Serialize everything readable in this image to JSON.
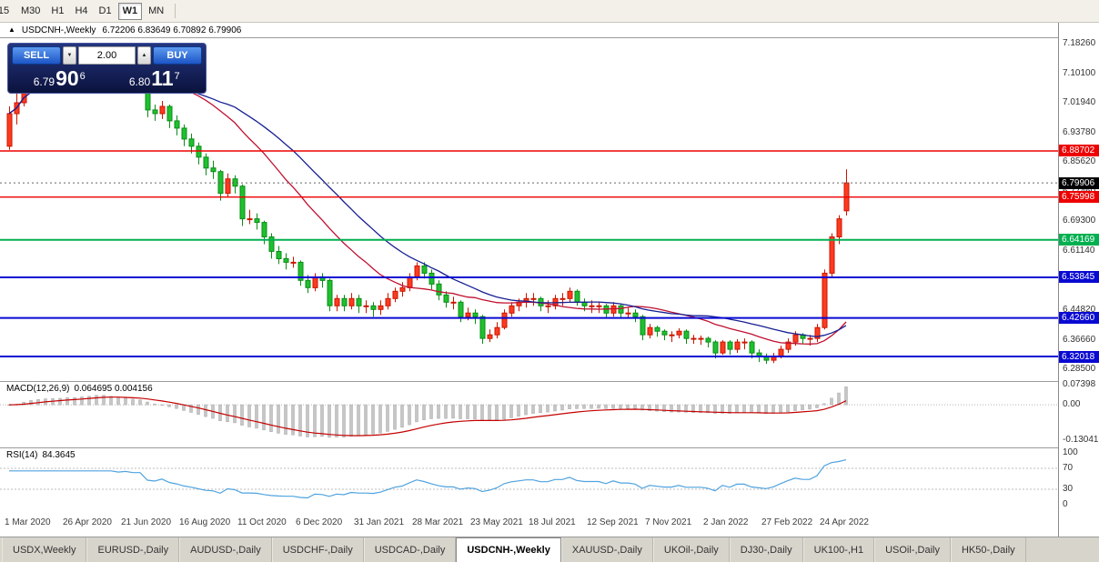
{
  "icons": {
    "chart_icon": "▲",
    "spin_up": "▲",
    "spin_down": "▼"
  },
  "toolbar": {
    "timeframes": [
      "15",
      "M30",
      "H1",
      "H4",
      "D1",
      "W1",
      "MN"
    ],
    "active": "W1"
  },
  "chart_header": {
    "title": "USDCNH-,Weekly",
    "ohlc": "6.72206 6.83649 6.70892 6.79906"
  },
  "trade_panel": {
    "sell_label": "SELL",
    "buy_label": "BUY",
    "lot_value": "2.00",
    "bid": {
      "small": "6.79",
      "big": "90",
      "sup": "6"
    },
    "ask": {
      "small": "6.80",
      "big": "11",
      "sup": "7"
    }
  },
  "price_axis": {
    "ticks": [
      "7.18260",
      "7.10100",
      "7.01940",
      "6.93780",
      "6.85620",
      "6.77460",
      "6.69300",
      "6.61140",
      "6.52980",
      "6.44820",
      "6.36660",
      "6.28500"
    ]
  },
  "hlines": [
    {
      "price": 6.88702,
      "label": "6.88702",
      "color": "#ed0000",
      "width": 1.4
    },
    {
      "price": 6.75998,
      "label": "6.75998",
      "color": "#ed0000",
      "width": 1.4
    },
    {
      "price": 6.64169,
      "label": "6.64169",
      "color": "#00b050",
      "width": 2
    },
    {
      "price": 6.53845,
      "label": "6.53845",
      "color": "#0909d2",
      "width": 2
    },
    {
      "price": 6.4266,
      "label": "6.42660",
      "color": "#0909d2",
      "width": 2
    },
    {
      "price": 6.32018,
      "label": "6.32018",
      "color": "#0909d2",
      "width": 2
    }
  ],
  "current_price": {
    "label": "6.79906",
    "price": 6.79906,
    "bg": "#000000"
  },
  "chart_data": {
    "type": "candlestick",
    "title": "USDCNH-,Weekly",
    "x_unit": "week",
    "weeks_per_label": 8,
    "x_labels": [
      "1 Mar 2020",
      "26 Apr 2020",
      "21 Jun 2020",
      "16 Aug 2020",
      "11 Oct 2020",
      "6 Dec 2020",
      "31 Jan 2021",
      "28 Mar 2021",
      "23 May 2021",
      "18 Jul 2021",
      "12 Sep 2021",
      "7 Nov 2021",
      "2 Jan 2022",
      "27 Feb 2022",
      "24 Apr 2022"
    ],
    "price_range": [
      6.255,
      7.198
    ],
    "up_color": "#fd3b20",
    "up_stroke": "#c81600",
    "down_color": "#1fc02f",
    "down_stroke": "#0a8c16",
    "ma_lines": [
      {
        "period": 20,
        "color": "#c01030"
      },
      {
        "period": 30,
        "color": "#171f93"
      }
    ],
    "candles": [
      [
        6.9,
        7.01,
        6.89,
        6.99
      ],
      [
        6.99,
        7.06,
        6.96,
        7.02
      ],
      [
        7.02,
        7.12,
        7.01,
        7.09
      ],
      [
        7.09,
        7.13,
        7.06,
        7.095
      ],
      [
        7.095,
        7.12,
        7.07,
        7.09
      ],
      [
        7.09,
        7.11,
        7.06,
        7.08
      ],
      [
        7.08,
        7.1,
        7.05,
        7.07
      ],
      [
        7.07,
        7.095,
        7.055,
        7.08
      ],
      [
        7.08,
        7.115,
        7.065,
        7.1
      ],
      [
        7.1,
        7.12,
        7.075,
        7.09
      ],
      [
        7.09,
        7.135,
        7.08,
        7.12
      ],
      [
        7.12,
        7.15,
        7.1,
        7.13
      ],
      [
        7.13,
        7.177,
        7.115,
        7.15
      ],
      [
        7.15,
        7.165,
        7.105,
        7.13
      ],
      [
        7.13,
        7.14,
        7.06,
        7.08
      ],
      [
        7.08,
        7.095,
        7.05,
        7.07
      ],
      [
        7.07,
        7.095,
        7.055,
        7.08
      ],
      [
        7.08,
        7.09,
        7.05,
        7.07
      ],
      [
        7.07,
        7.085,
        7.045,
        7.07
      ],
      [
        7.07,
        7.075,
        6.98,
        7.0
      ],
      [
        7.0,
        7.015,
        6.97,
        6.99
      ],
      [
        6.99,
        7.025,
        6.975,
        7.01
      ],
      [
        7.01,
        7.015,
        6.95,
        6.97
      ],
      [
        6.97,
        6.985,
        6.93,
        6.95
      ],
      [
        6.95,
        6.96,
        6.9,
        6.92
      ],
      [
        6.92,
        6.935,
        6.88,
        6.9
      ],
      [
        6.9,
        6.91,
        6.85,
        6.87
      ],
      [
        6.87,
        6.88,
        6.82,
        6.84
      ],
      [
        6.84,
        6.86,
        6.81,
        6.83
      ],
      [
        6.83,
        6.835,
        6.75,
        6.77
      ],
      [
        6.77,
        6.825,
        6.76,
        6.81
      ],
      [
        6.81,
        6.82,
        6.77,
        6.79
      ],
      [
        6.79,
        6.795,
        6.68,
        6.7
      ],
      [
        6.7,
        6.725,
        6.685,
        6.7
      ],
      [
        6.7,
        6.715,
        6.67,
        6.69
      ],
      [
        6.69,
        6.695,
        6.63,
        6.65
      ],
      [
        6.65,
        6.66,
        6.59,
        6.61
      ],
      [
        6.61,
        6.625,
        6.575,
        6.59
      ],
      [
        6.59,
        6.605,
        6.56,
        6.58
      ],
      [
        6.58,
        6.595,
        6.565,
        6.58
      ],
      [
        6.58,
        6.585,
        6.515,
        6.53
      ],
      [
        6.53,
        6.545,
        6.495,
        6.51
      ],
      [
        6.51,
        6.55,
        6.5,
        6.54
      ],
      [
        6.54,
        6.55,
        6.51,
        6.53
      ],
      [
        6.53,
        6.535,
        6.445,
        6.46
      ],
      [
        6.46,
        6.49,
        6.445,
        6.48
      ],
      [
        6.48,
        6.49,
        6.445,
        6.46
      ],
      [
        6.46,
        6.495,
        6.45,
        6.48
      ],
      [
        6.48,
        6.49,
        6.44,
        6.46
      ],
      [
        6.46,
        6.475,
        6.44,
        6.46
      ],
      [
        6.46,
        6.47,
        6.43,
        6.45
      ],
      [
        6.45,
        6.475,
        6.435,
        6.46
      ],
      [
        6.46,
        6.495,
        6.45,
        6.48
      ],
      [
        6.48,
        6.51,
        6.47,
        6.5
      ],
      [
        6.5,
        6.525,
        6.485,
        6.51
      ],
      [
        6.51,
        6.55,
        6.5,
        6.54
      ],
      [
        6.54,
        6.58,
        6.53,
        6.57
      ],
      [
        6.57,
        6.58,
        6.535,
        6.55
      ],
      [
        6.55,
        6.56,
        6.505,
        6.52
      ],
      [
        6.52,
        6.53,
        6.475,
        6.49
      ],
      [
        6.49,
        6.5,
        6.455,
        6.47
      ],
      [
        6.47,
        6.485,
        6.45,
        6.47
      ],
      [
        6.47,
        6.475,
        6.415,
        6.43
      ],
      [
        6.43,
        6.455,
        6.42,
        6.44
      ],
      [
        6.44,
        6.45,
        6.41,
        6.43
      ],
      [
        6.43,
        6.435,
        6.355,
        6.37
      ],
      [
        6.37,
        6.395,
        6.36,
        6.38
      ],
      [
        6.38,
        6.415,
        6.37,
        6.4
      ],
      [
        6.4,
        6.45,
        6.395,
        6.44
      ],
      [
        6.44,
        6.47,
        6.43,
        6.46
      ],
      [
        6.46,
        6.48,
        6.445,
        6.47
      ],
      [
        6.47,
        6.495,
        6.455,
        6.48
      ],
      [
        6.48,
        6.495,
        6.46,
        6.48
      ],
      [
        6.48,
        6.485,
        6.445,
        6.46
      ],
      [
        6.46,
        6.475,
        6.44,
        6.46
      ],
      [
        6.46,
        6.49,
        6.45,
        6.48
      ],
      [
        6.48,
        6.495,
        6.46,
        6.48
      ],
      [
        6.48,
        6.51,
        6.47,
        6.5
      ],
      [
        6.5,
        6.505,
        6.46,
        6.47
      ],
      [
        6.47,
        6.48,
        6.445,
        6.46
      ],
      [
        6.46,
        6.475,
        6.44,
        6.46
      ],
      [
        6.46,
        6.47,
        6.44,
        6.46
      ],
      [
        6.46,
        6.465,
        6.425,
        6.44
      ],
      [
        6.44,
        6.47,
        6.43,
        6.46
      ],
      [
        6.46,
        6.465,
        6.425,
        6.44
      ],
      [
        6.44,
        6.455,
        6.425,
        6.44
      ],
      [
        6.44,
        6.45,
        6.415,
        6.43
      ],
      [
        6.43,
        6.435,
        6.365,
        6.38
      ],
      [
        6.38,
        6.41,
        6.37,
        6.4
      ],
      [
        6.4,
        6.405,
        6.375,
        6.39
      ],
      [
        6.39,
        6.395,
        6.365,
        6.38
      ],
      [
        6.38,
        6.39,
        6.36,
        6.38
      ],
      [
        6.38,
        6.398,
        6.37,
        6.39
      ],
      [
        6.39,
        6.395,
        6.355,
        6.37
      ],
      [
        6.37,
        6.38,
        6.355,
        6.37
      ],
      [
        6.37,
        6.378,
        6.352,
        6.37
      ],
      [
        6.37,
        6.375,
        6.345,
        6.36
      ],
      [
        6.36,
        6.365,
        6.315,
        6.33
      ],
      [
        6.33,
        6.365,
        6.325,
        6.36
      ],
      [
        6.36,
        6.365,
        6.325,
        6.34
      ],
      [
        6.34,
        6.368,
        6.33,
        6.36
      ],
      [
        6.36,
        6.37,
        6.34,
        6.36
      ],
      [
        6.36,
        6.365,
        6.315,
        6.33
      ],
      [
        6.33,
        6.34,
        6.305,
        6.32
      ],
      [
        6.32,
        6.328,
        6.3,
        6.31
      ],
      [
        6.31,
        6.33,
        6.302,
        6.32
      ],
      [
        6.32,
        6.35,
        6.315,
        6.34
      ],
      [
        6.34,
        6.37,
        6.33,
        6.36
      ],
      [
        6.36,
        6.39,
        6.35,
        6.38
      ],
      [
        6.38,
        6.385,
        6.355,
        6.37
      ],
      [
        6.37,
        6.38,
        6.35,
        6.37
      ],
      [
        6.37,
        6.41,
        6.36,
        6.4
      ],
      [
        6.4,
        6.56,
        6.395,
        6.55
      ],
      [
        6.55,
        6.66,
        6.54,
        6.65
      ],
      [
        6.65,
        6.71,
        6.63,
        6.7
      ],
      [
        6.72206,
        6.83649,
        6.70892,
        6.79906
      ]
    ],
    "macd": {
      "name": "MACD(12,26,9)",
      "value": "0.064695 0.004156",
      "fast": 12,
      "slow": 26,
      "signal_period": 9,
      "range": [
        -0.155,
        0.085
      ],
      "axis_ticks": [
        {
          "label": "0.07398",
          "v": 0.07398
        },
        {
          "label": "0.00",
          "v": 0
        },
        {
          "label": "-0.13041",
          "v": -0.13041
        }
      ],
      "hist_color": "#c6c6c6",
      "signal_color": "#c40000"
    },
    "rsi": {
      "name": "RSI(14)",
      "value": "84.3645",
      "period": 14,
      "axis_ticks": [
        {
          "label": "100",
          "v": 100
        },
        {
          "label": "70",
          "v": 70
        },
        {
          "label": "30",
          "v": 30
        },
        {
          "label": "0",
          "v": 0
        }
      ],
      "levels": [
        70,
        30
      ],
      "color": "#4fa3df"
    }
  },
  "tabs": {
    "active": "USDCNH-,Weekly",
    "items": [
      "USDX,Weekly",
      "EURUSD-,Daily",
      "AUDUSD-,Daily",
      "USDCHF-,Daily",
      "USDCAD-,Daily",
      "USDCNH-,Weekly",
      "XAUUSD-,Daily",
      "UKOil-,Daily",
      "DJ30-,Daily",
      "UK100-,H1",
      "USOil-,Daily",
      "HK50-,Daily"
    ]
  }
}
